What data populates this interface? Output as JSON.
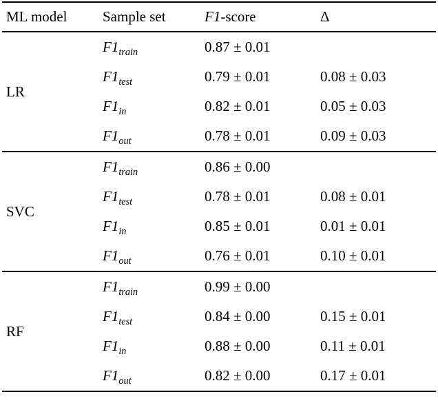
{
  "table": {
    "headers": {
      "model": "ML model",
      "sample_set": "Sample set",
      "f1_base": "F1",
      "f1_suffix": "-score",
      "delta": "Δ"
    },
    "groups": [
      {
        "model": "LR",
        "rows": [
          {
            "set_base": "F1",
            "set_sub": "train",
            "f1": "0.87 ± 0.01",
            "delta": ""
          },
          {
            "set_base": "F1",
            "set_sub": "test",
            "f1": "0.79 ± 0.01",
            "delta": "0.08 ± 0.03"
          },
          {
            "set_base": "F1",
            "set_sub": "in",
            "f1": "0.82 ± 0.01",
            "delta": "0.05 ± 0.03"
          },
          {
            "set_base": "F1",
            "set_sub": "out",
            "f1": "0.78 ± 0.01",
            "delta": "0.09 ± 0.03"
          }
        ]
      },
      {
        "model": "SVC",
        "rows": [
          {
            "set_base": "F1",
            "set_sub": "train",
            "f1": "0.86 ± 0.00",
            "delta": ""
          },
          {
            "set_base": "F1",
            "set_sub": "test",
            "f1": "0.78 ± 0.01",
            "delta": "0.08 ± 0.01"
          },
          {
            "set_base": "F1",
            "set_sub": "in",
            "f1": "0.85 ± 0.01",
            "delta": "0.01 ± 0.01"
          },
          {
            "set_base": "F1",
            "set_sub": "out",
            "f1": "0.76 ± 0.01",
            "delta": "0.10 ± 0.01"
          }
        ]
      },
      {
        "model": "RF",
        "rows": [
          {
            "set_base": "F1",
            "set_sub": "train",
            "f1": "0.99 ± 0.00",
            "delta": ""
          },
          {
            "set_base": "F1",
            "set_sub": "test",
            "f1": "0.84 ± 0.00",
            "delta": "0.15 ± 0.01"
          },
          {
            "set_base": "F1",
            "set_sub": "in",
            "f1": "0.88 ± 0.00",
            "delta": "0.11 ± 0.01"
          },
          {
            "set_base": "F1",
            "set_sub": "out",
            "f1": "0.82 ± 0.00",
            "delta": "0.17 ± 0.01"
          }
        ]
      }
    ]
  }
}
